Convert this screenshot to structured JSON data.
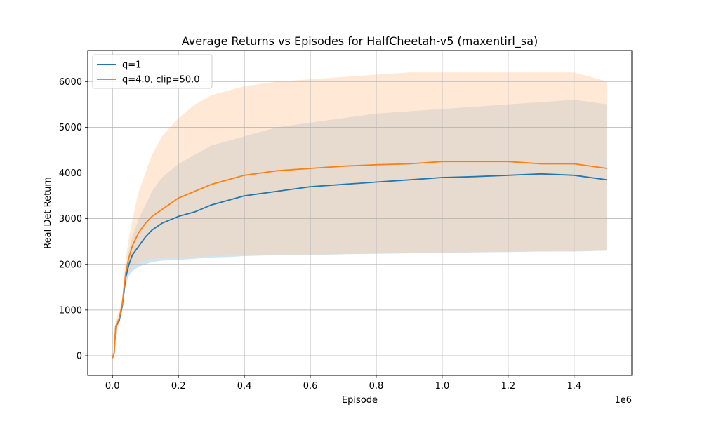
{
  "chart_data": {
    "type": "line",
    "title": "Average Returns vs Episodes for HalfCheetah-v5 (maxentirl_sa)",
    "xlabel": "Episode",
    "ylabel": "Real Det Return",
    "x_offset_label": "1e6",
    "xlim": [
      -0.075,
      1.575
    ],
    "ylim": [
      -430,
      6680
    ],
    "x_ticks": [
      0.0,
      0.2,
      0.4,
      0.6,
      0.8,
      1.0,
      1.2,
      1.4
    ],
    "x_tick_labels": [
      "0.0",
      "0.2",
      "0.4",
      "0.6",
      "0.8",
      "1.0",
      "1.2",
      "1.4"
    ],
    "y_ticks": [
      0,
      1000,
      2000,
      3000,
      4000,
      5000,
      6000
    ],
    "y_tick_labels": [
      "0",
      "1000",
      "2000",
      "3000",
      "4000",
      "5000",
      "6000"
    ],
    "grid": true,
    "legend_position": "top-left",
    "series": [
      {
        "name": "q=1",
        "color": "#1f77b4",
        "x": [
          0.0,
          0.005,
          0.01,
          0.02,
          0.03,
          0.04,
          0.05,
          0.06,
          0.07,
          0.08,
          0.1,
          0.12,
          0.15,
          0.2,
          0.25,
          0.3,
          0.35,
          0.4,
          0.5,
          0.6,
          0.7,
          0.8,
          0.9,
          1.0,
          1.1,
          1.2,
          1.3,
          1.4,
          1.5
        ],
        "mean": [
          -50,
          50,
          650,
          750,
          1100,
          1700,
          2000,
          2200,
          2300,
          2400,
          2600,
          2750,
          2900,
          3050,
          3150,
          3300,
          3400,
          3500,
          3600,
          3700,
          3750,
          3800,
          3850,
          3900,
          3920,
          3950,
          3980,
          3950,
          3850
        ],
        "lower": [
          -80,
          20,
          550,
          700,
          1050,
          1550,
          1750,
          1850,
          1900,
          1950,
          2000,
          2050,
          2080,
          2100,
          2120,
          2150,
          2160,
          2180,
          2200,
          2200,
          2220,
          2230,
          2240,
          2250,
          2260,
          2270,
          2280,
          2280,
          2300
        ],
        "upper": [
          -20,
          100,
          750,
          850,
          1200,
          1900,
          2300,
          2600,
          2800,
          3000,
          3300,
          3600,
          3900,
          4200,
          4400,
          4600,
          4700,
          4800,
          5000,
          5100,
          5200,
          5300,
          5350,
          5400,
          5450,
          5500,
          5550,
          5600,
          5500
        ]
      },
      {
        "name": "q=4.0, clip=50.0",
        "color": "#ff7f0e",
        "x": [
          0.0,
          0.005,
          0.01,
          0.02,
          0.03,
          0.04,
          0.05,
          0.06,
          0.07,
          0.08,
          0.1,
          0.12,
          0.15,
          0.2,
          0.25,
          0.3,
          0.35,
          0.4,
          0.5,
          0.6,
          0.7,
          0.8,
          0.9,
          1.0,
          1.1,
          1.2,
          1.3,
          1.4,
          1.5
        ],
        "mean": [
          -50,
          50,
          650,
          800,
          1150,
          1800,
          2150,
          2400,
          2550,
          2700,
          2900,
          3050,
          3200,
          3450,
          3600,
          3750,
          3850,
          3950,
          4050,
          4100,
          4150,
          4180,
          4200,
          4250,
          4250,
          4250,
          4200,
          4200,
          4100
        ],
        "lower": [
          -80,
          20,
          550,
          720,
          1080,
          1600,
          1850,
          1950,
          2000,
          2050,
          2100,
          2120,
          2140,
          2150,
          2160,
          2180,
          2190,
          2200,
          2210,
          2220,
          2230,
          2240,
          2250,
          2260,
          2270,
          2280,
          2280,
          2290,
          2300
        ],
        "upper": [
          -20,
          100,
          800,
          950,
          1300,
          2100,
          2600,
          2950,
          3300,
          3600,
          4000,
          4400,
          4800,
          5200,
          5500,
          5700,
          5800,
          5900,
          6000,
          6050,
          6100,
          6150,
          6200,
          6200,
          6200,
          6200,
          6200,
          6200,
          6000
        ]
      }
    ]
  }
}
